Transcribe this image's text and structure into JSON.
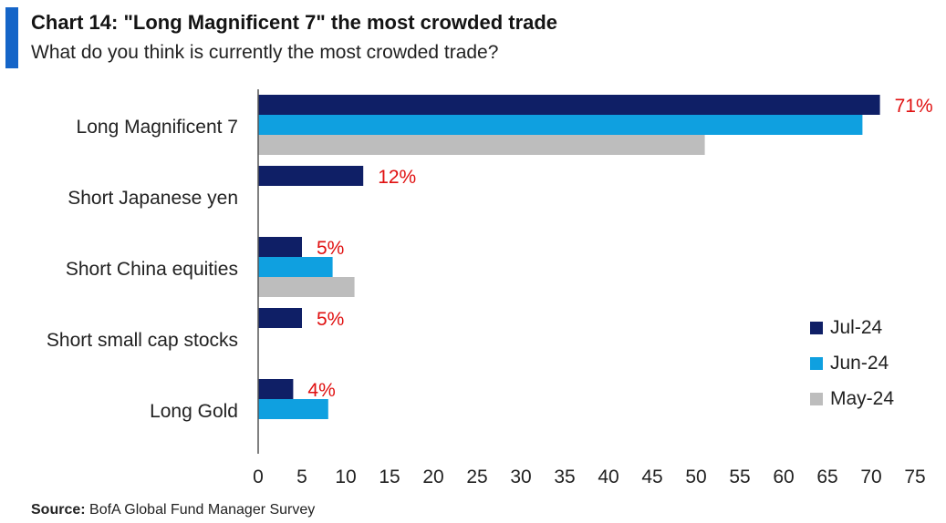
{
  "header": {
    "title": "Chart 14: \"Long Magnificent 7\" the most crowded trade",
    "subtitle": "What do you think is currently the most crowded trade?"
  },
  "footer": {
    "source_label": "Source:",
    "source_text": "BofA Global Fund Manager Survey"
  },
  "colors": {
    "accent": "#1565c8",
    "jul": "#0f1f66",
    "jun": "#0fa0e0",
    "may": "#bdbdbd",
    "label_red": "#e01010"
  },
  "chart_data": {
    "type": "bar",
    "orientation": "horizontal",
    "title": "Chart 14: \"Long Magnificent 7\" the most crowded trade",
    "subtitle": "What do you think is currently the most crowded trade?",
    "categories": [
      "Long Magnificent 7",
      "Short Japanese yen",
      "Short China equities",
      "Short small cap stocks",
      "Long Gold"
    ],
    "series": [
      {
        "name": "Jul-24",
        "color": "#0f1f66",
        "values": [
          71,
          12,
          5,
          5,
          4
        ]
      },
      {
        "name": "Jun-24",
        "color": "#0fa0e0",
        "values": [
          69,
          null,
          8.5,
          null,
          8
        ]
      },
      {
        "name": "May-24",
        "color": "#bdbdbd",
        "values": [
          51,
          null,
          11,
          null,
          null
        ]
      }
    ],
    "data_labels": [
      "71%",
      "12%",
      "5%",
      "5%",
      "4%"
    ],
    "xlim": [
      0,
      75
    ],
    "xticks": [
      0,
      5,
      10,
      15,
      20,
      25,
      30,
      35,
      40,
      45,
      50,
      55,
      60,
      65,
      70,
      75
    ],
    "legend_position": "right",
    "grid": false
  }
}
